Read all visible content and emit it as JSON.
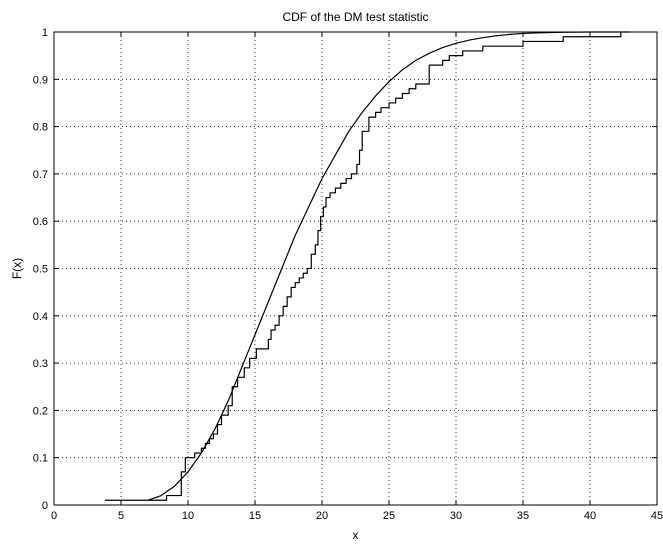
{
  "chart_data": {
    "type": "line",
    "title": "CDF of the DM test statistic",
    "xlabel": "x",
    "ylabel": "F(x)",
    "xlim": [
      0,
      45
    ],
    "ylim": [
      0,
      1
    ],
    "xticks": [
      0,
      5,
      10,
      15,
      20,
      25,
      30,
      35,
      40,
      45
    ],
    "yticks": [
      0,
      0.1,
      0.2,
      0.3,
      0.4,
      0.5,
      0.6,
      0.7,
      0.8,
      0.9,
      1
    ],
    "grid": true,
    "line_color": "#000000",
    "series": [
      {
        "style": "smooth",
        "x": [
          7.0,
          8.0,
          9.0,
          10.0,
          11.0,
          12.0,
          13.0,
          14.0,
          15.0,
          16.0,
          17.0,
          18.0,
          19.0,
          20.0,
          21.0,
          22.0,
          23.0,
          24.0,
          25.0,
          26.0,
          27.0,
          28.0,
          29.0,
          30.0,
          31.0,
          32.0,
          33.0,
          34.0,
          35.0,
          36.0,
          37.0,
          38.0,
          39.0,
          40.0,
          41.0,
          42.0,
          43.0
        ],
        "y": [
          0.01,
          0.02,
          0.04,
          0.07,
          0.11,
          0.16,
          0.22,
          0.29,
          0.36,
          0.43,
          0.5,
          0.57,
          0.63,
          0.69,
          0.74,
          0.79,
          0.83,
          0.865,
          0.895,
          0.92,
          0.94,
          0.955,
          0.967,
          0.976,
          0.983,
          0.988,
          0.992,
          0.995,
          0.997,
          0.998,
          0.999,
          0.9995,
          0.9998,
          1.0,
          1.0,
          1.0,
          1.0
        ]
      },
      {
        "style": "step",
        "x": [
          3.8,
          8.4,
          9.5,
          9.8,
          10.5,
          11.0,
          11.3,
          11.6,
          11.9,
          12.2,
          12.5,
          13.0,
          13.3,
          13.7,
          14.2,
          14.6,
          15.1,
          16.0,
          16.2,
          16.5,
          16.8,
          17.1,
          17.4,
          17.7,
          18.0,
          18.3,
          18.6,
          18.9,
          19.2,
          19.5,
          19.7,
          19.9,
          20.1,
          20.3,
          20.6,
          21.0,
          21.4,
          21.8,
          22.2,
          22.6,
          22.8,
          23.0,
          23.5,
          24.0,
          24.4,
          25.0,
          25.5,
          26.0,
          26.5,
          27.0,
          28.0,
          29.0,
          29.5,
          30.5,
          32.0,
          35.0,
          38.0,
          42.3
        ],
        "y": [
          0.01,
          0.02,
          0.07,
          0.1,
          0.11,
          0.12,
          0.13,
          0.14,
          0.15,
          0.17,
          0.19,
          0.21,
          0.25,
          0.27,
          0.29,
          0.31,
          0.33,
          0.35,
          0.37,
          0.38,
          0.4,
          0.42,
          0.44,
          0.46,
          0.47,
          0.48,
          0.49,
          0.5,
          0.53,
          0.55,
          0.58,
          0.61,
          0.63,
          0.65,
          0.66,
          0.67,
          0.68,
          0.69,
          0.7,
          0.72,
          0.75,
          0.79,
          0.82,
          0.83,
          0.84,
          0.85,
          0.86,
          0.87,
          0.88,
          0.89,
          0.93,
          0.94,
          0.95,
          0.96,
          0.97,
          0.98,
          0.99,
          1.0
        ]
      }
    ]
  }
}
